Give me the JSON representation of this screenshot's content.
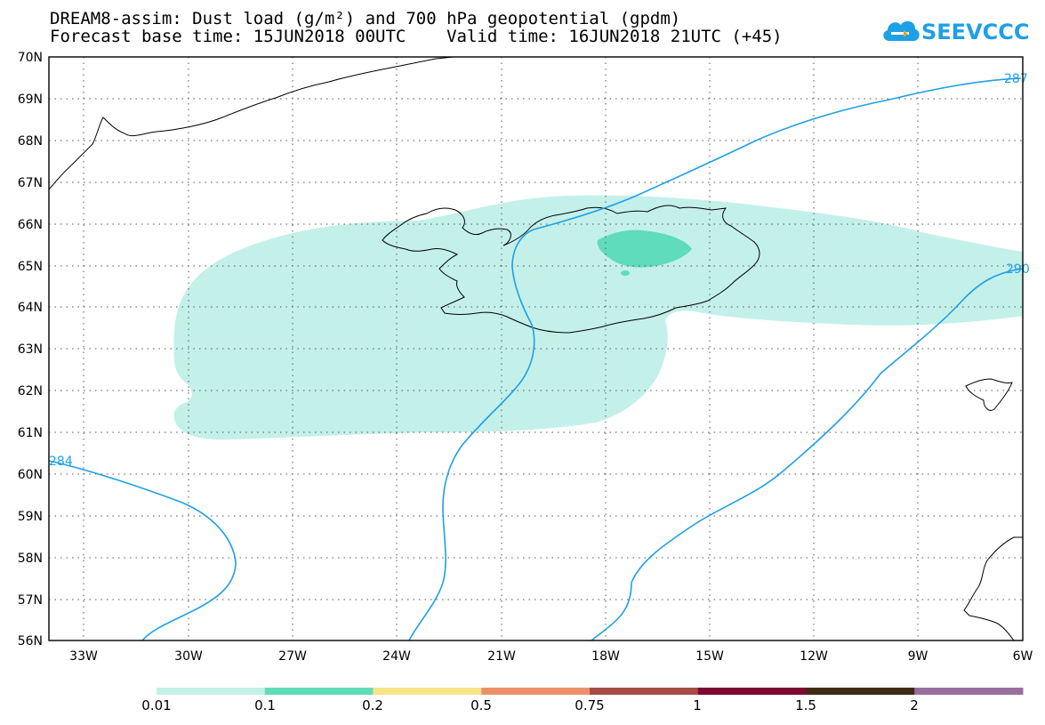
{
  "title_line1": "DREAM8-assim: Dust load (g/m²) and 700 hPa geopotential (gpdm)",
  "title_line2": "Forecast base time: 15JUN2018 00UTC    Valid time: 16JUN2018 21UTC (+45)",
  "logo_text": "SEEVCCC",
  "lat_labels": [
    "70N",
    "69N",
    "68N",
    "67N",
    "66N",
    "65N",
    "64N",
    "63N",
    "62N",
    "61N",
    "60N",
    "59N",
    "58N",
    "57N",
    "56N"
  ],
  "lon_labels": [
    "33W",
    "30W",
    "27W",
    "24W",
    "21W",
    "18W",
    "15W",
    "12W",
    "9W",
    "6W"
  ],
  "contour_labels": [
    "284",
    "287",
    "290"
  ],
  "contour_color": "#1ea0e6",
  "colorbar": {
    "labels": [
      "0.01",
      "0.1",
      "0.2",
      "0.5",
      "0.75",
      "1",
      "1.5",
      "2"
    ],
    "colors": [
      "#c4f0ea",
      "#5fdcb9",
      "#f7e487",
      "#eb9068",
      "#a84c46",
      "#7d0a32",
      "#3e2a16",
      "#9a6fa0"
    ]
  }
}
